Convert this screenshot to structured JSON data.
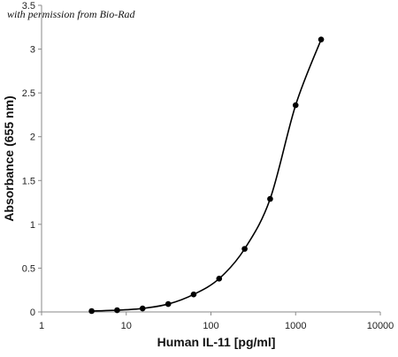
{
  "chart_data": {
    "type": "scatter",
    "annotation": "with permission from Bio-Rad",
    "xlabel": "Human IL-11 [pg/ml]",
    "ylabel": "Absorbance (655 nm)",
    "x_scale": "log",
    "xlim": [
      1,
      10000
    ],
    "ylim": [
      0,
      3.5
    ],
    "x_ticks": [
      1,
      10,
      100,
      1000,
      10000
    ],
    "x_tick_labels": [
      "1",
      "10",
      "100",
      "1000",
      "10000"
    ],
    "y_ticks": [
      0,
      0.5,
      1,
      1.5,
      2,
      2.5,
      3,
      3.5
    ],
    "y_tick_labels": [
      "0",
      "0.5",
      "1",
      "1.5",
      "2",
      "2.5",
      "3",
      "3.5"
    ],
    "grid": false,
    "legend": "none",
    "fit_curve": true,
    "color": "#000000",
    "series": [
      {
        "x": [
          3.9,
          7.8,
          15.6,
          31.3,
          62.5,
          125,
          250,
          500,
          1000,
          2000
        ],
        "y": [
          0.01,
          0.02,
          0.04,
          0.09,
          0.2,
          0.38,
          0.72,
          1.29,
          2.36,
          3.11
        ]
      }
    ]
  }
}
